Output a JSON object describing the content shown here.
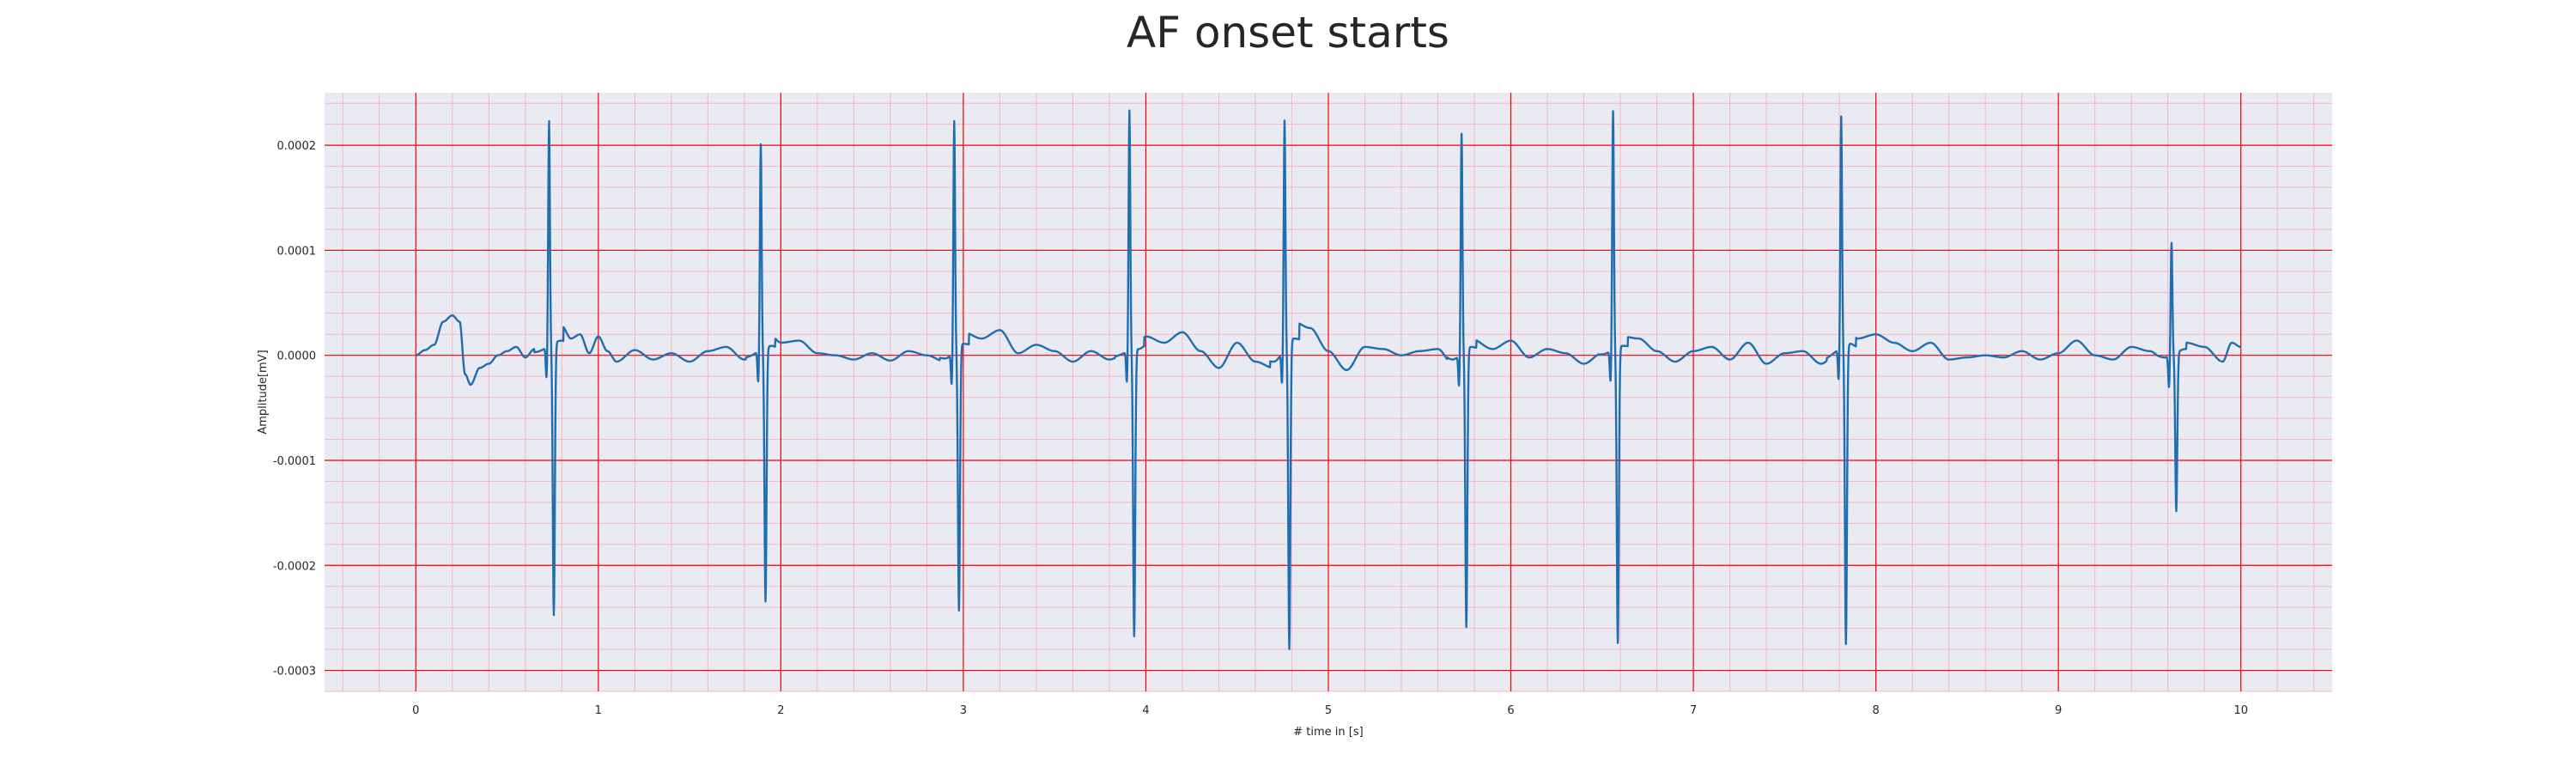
{
  "chart_data": {
    "type": "line",
    "title": "AF onset starts",
    "xlabel": "# time in [s]",
    "ylabel": "Amplitude[mV]",
    "xlim": [
      -0.5,
      10.5
    ],
    "ylim": [
      -0.00032,
      0.00025
    ],
    "x_ticks": [
      0,
      1,
      2,
      3,
      4,
      5,
      6,
      7,
      8,
      9,
      10
    ],
    "x_tick_labels": [
      "0",
      "1",
      "2",
      "3",
      "4",
      "5",
      "6",
      "7",
      "8",
      "9",
      "10"
    ],
    "y_ticks": [
      0.0002,
      0.0001,
      0.0,
      -0.0001,
      -0.0002,
      -0.0003
    ],
    "y_tick_labels": [
      "0.0002",
      "0.0001",
      "0.0000",
      "-0.0001",
      "-0.0002",
      "-0.0003"
    ],
    "grid": true,
    "minor_grid": true,
    "colors": {
      "line": "#1f6fb0",
      "plot_background": "#eaeaf2",
      "major_grid": "#ff0000",
      "minor_grid": "#f7b6c1",
      "text": "#262626"
    },
    "series": [
      {
        "peaks": [
          {
            "t": 0.73,
            "r": 0.000214,
            "s": -0.000259
          },
          {
            "t": 1.89,
            "r": 0.000196,
            "s": -0.000242
          },
          {
            "t": 2.95,
            "r": 0.000219,
            "s": -0.000252
          },
          {
            "t": 3.91,
            "r": 0.000229,
            "s": -0.000273
          },
          {
            "t": 4.76,
            "r": 0.000217,
            "s": -0.000293
          },
          {
            "t": 5.73,
            "r": 0.000209,
            "s": -0.000265
          },
          {
            "t": 6.56,
            "r": 0.000227,
            "s": -0.000282
          },
          {
            "t": 7.81,
            "r": 0.00022,
            "s": -0.000285
          },
          {
            "t": 9.62,
            "r": 0.000107,
            "s": -0.000151
          }
        ],
        "baseline_samples": [
          [
            0.0,
            0.0
          ],
          [
            0.05,
            5e-06
          ],
          [
            0.1,
            1e-05
          ],
          [
            0.15,
            3.2e-05
          ],
          [
            0.2,
            3.8e-05
          ],
          [
            0.24,
            3.2e-05
          ],
          [
            0.27,
            -1.8e-05
          ],
          [
            0.3,
            -2.8e-05
          ],
          [
            0.35,
            -1.2e-05
          ],
          [
            0.4,
            -8e-06
          ],
          [
            0.45,
            0.0
          ],
          [
            0.5,
            4e-06
          ],
          [
            0.55,
            8e-06
          ],
          [
            0.6,
            -2e-06
          ],
          [
            0.65,
            6e-06
          ],
          [
            0.8,
            2.8e-05
          ],
          [
            0.85,
            1.6e-05
          ],
          [
            0.9,
            2e-05
          ],
          [
            0.95,
            2e-06
          ],
          [
            1.0,
            1.8e-05
          ],
          [
            1.05,
            4e-06
          ],
          [
            1.1,
            -6e-06
          ],
          [
            1.2,
            5e-06
          ],
          [
            1.3,
            -4e-06
          ],
          [
            1.4,
            2e-06
          ],
          [
            1.5,
            -6e-06
          ],
          [
            1.6,
            4e-06
          ],
          [
            1.7,
            8e-06
          ],
          [
            1.8,
            -4e-06
          ],
          [
            1.95,
            1.8e-05
          ],
          [
            2.0,
            1.2e-05
          ],
          [
            2.1,
            1.4e-05
          ],
          [
            2.2,
            2e-06
          ],
          [
            2.3,
            0.0
          ],
          [
            2.4,
            -4e-06
          ],
          [
            2.5,
            2e-06
          ],
          [
            2.6,
            -5e-06
          ],
          [
            2.7,
            4e-06
          ],
          [
            2.8,
            0.0
          ],
          [
            2.9,
            -6e-06
          ],
          [
            3.0,
            2.2e-05
          ],
          [
            3.1,
            1.6e-05
          ],
          [
            3.2,
            2.4e-05
          ],
          [
            3.3,
            2e-06
          ],
          [
            3.4,
            1e-05
          ],
          [
            3.5,
            4e-06
          ],
          [
            3.6,
            -6e-06
          ],
          [
            3.7,
            4e-06
          ],
          [
            3.8,
            -4e-06
          ],
          [
            3.96,
            1.2e-05
          ],
          [
            4.0,
            1.8e-05
          ],
          [
            4.1,
            1.2e-05
          ],
          [
            4.2,
            2.2e-05
          ],
          [
            4.3,
            4e-06
          ],
          [
            4.4,
            -1.2e-05
          ],
          [
            4.5,
            1.2e-05
          ],
          [
            4.6,
            -6e-06
          ],
          [
            4.7,
            -1.2e-05
          ],
          [
            4.81,
            3.2e-05
          ],
          [
            4.9,
            2.6e-05
          ],
          [
            5.0,
            4e-06
          ],
          [
            5.1,
            -1.4e-05
          ],
          [
            5.2,
            8e-06
          ],
          [
            5.3,
            6e-06
          ],
          [
            5.4,
            0.0
          ],
          [
            5.5,
            4e-06
          ],
          [
            5.6,
            6e-06
          ],
          [
            5.68,
            -8e-06
          ],
          [
            5.78,
            1.6e-05
          ],
          [
            5.9,
            6e-06
          ],
          [
            6.0,
            1.4e-05
          ],
          [
            6.1,
            -2e-06
          ],
          [
            6.2,
            6e-06
          ],
          [
            6.3,
            2e-06
          ],
          [
            6.4,
            -8e-06
          ],
          [
            6.5,
            2e-06
          ],
          [
            6.61,
            1.8e-05
          ],
          [
            6.7,
            1.6e-05
          ],
          [
            6.8,
            4e-06
          ],
          [
            6.9,
            -6e-06
          ],
          [
            7.0,
            4e-06
          ],
          [
            7.1,
            8e-06
          ],
          [
            7.2,
            -4e-06
          ],
          [
            7.3,
            1.2e-05
          ],
          [
            7.4,
            -8e-06
          ],
          [
            7.5,
            2e-06
          ],
          [
            7.6,
            4e-06
          ],
          [
            7.7,
            -8e-06
          ],
          [
            7.86,
            2.2e-05
          ],
          [
            7.9,
            1.6e-05
          ],
          [
            8.0,
            2e-05
          ],
          [
            8.1,
            1.2e-05
          ],
          [
            8.2,
            4e-06
          ],
          [
            8.3,
            1.2e-05
          ],
          [
            8.4,
            -4e-06
          ],
          [
            8.5,
            -2e-06
          ],
          [
            8.6,
            0.0
          ],
          [
            8.7,
            -2e-06
          ],
          [
            8.8,
            4e-06
          ],
          [
            8.9,
            -4e-06
          ],
          [
            9.0,
            2e-06
          ],
          [
            9.1,
            1.4e-05
          ],
          [
            9.2,
            0.0
          ],
          [
            9.3,
            -4e-06
          ],
          [
            9.4,
            8e-06
          ],
          [
            9.5,
            4e-06
          ],
          [
            9.58,
            -4e-06
          ],
          [
            9.7,
            1.2e-05
          ],
          [
            9.8,
            8e-06
          ],
          [
            9.9,
            -6e-06
          ],
          [
            9.95,
            1.2e-05
          ],
          [
            10.0,
            8e-06
          ]
        ]
      }
    ]
  }
}
